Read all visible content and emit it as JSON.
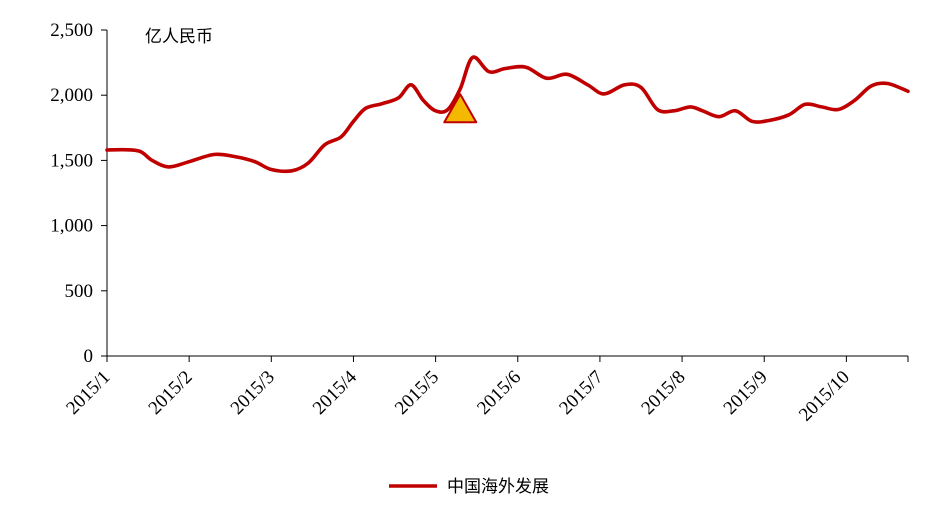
{
  "chart_data": {
    "type": "line",
    "unit_label": "亿人民币",
    "ylim": [
      0,
      2500
    ],
    "yticks": [
      0,
      500,
      1000,
      1500,
      2000,
      2500
    ],
    "ytick_labels": [
      "0",
      "500",
      "1,000",
      "1,500",
      "2,000",
      "2,500"
    ],
    "x_tick_labels": [
      "2015/1",
      "2015/2",
      "2015/3",
      "2015/4",
      "2015/5",
      "2015/6",
      "2015/7",
      "2015/8",
      "2015/9",
      "2015/10"
    ],
    "x_range_months": [
      1,
      10.75
    ],
    "grid": false,
    "legend_position": "bottom",
    "series": [
      {
        "name": "中国海外发展",
        "color": "#c00000",
        "x": [
          1.0,
          1.2,
          1.4,
          1.55,
          1.75,
          2.0,
          2.3,
          2.55,
          2.8,
          3.0,
          3.25,
          3.45,
          3.65,
          3.85,
          4.0,
          4.15,
          4.35,
          4.55,
          4.7,
          4.85,
          5.0,
          5.15,
          5.3,
          5.45,
          5.65,
          5.85,
          6.1,
          6.35,
          6.6,
          6.85,
          7.05,
          7.3,
          7.5,
          7.7,
          7.9,
          8.1,
          8.25,
          8.45,
          8.65,
          8.85,
          9.05,
          9.3,
          9.5,
          9.7,
          9.9,
          10.1,
          10.3,
          10.5,
          10.75
        ],
        "values": [
          1580,
          1582,
          1570,
          1500,
          1450,
          1490,
          1545,
          1530,
          1490,
          1430,
          1420,
          1480,
          1620,
          1680,
          1800,
          1900,
          1935,
          1980,
          2080,
          1960,
          1880,
          1890,
          2050,
          2290,
          2180,
          2205,
          2215,
          2130,
          2160,
          2080,
          2010,
          2080,
          2060,
          1890,
          1880,
          1910,
          1880,
          1835,
          1880,
          1800,
          1805,
          1850,
          1930,
          1910,
          1890,
          1960,
          2070,
          2090,
          2030
        ]
      }
    ],
    "annotations": [
      {
        "type": "triangle-marker",
        "x": 5.3,
        "y": 1900,
        "color": "#f5b800",
        "stroke": "#c00000"
      }
    ]
  }
}
